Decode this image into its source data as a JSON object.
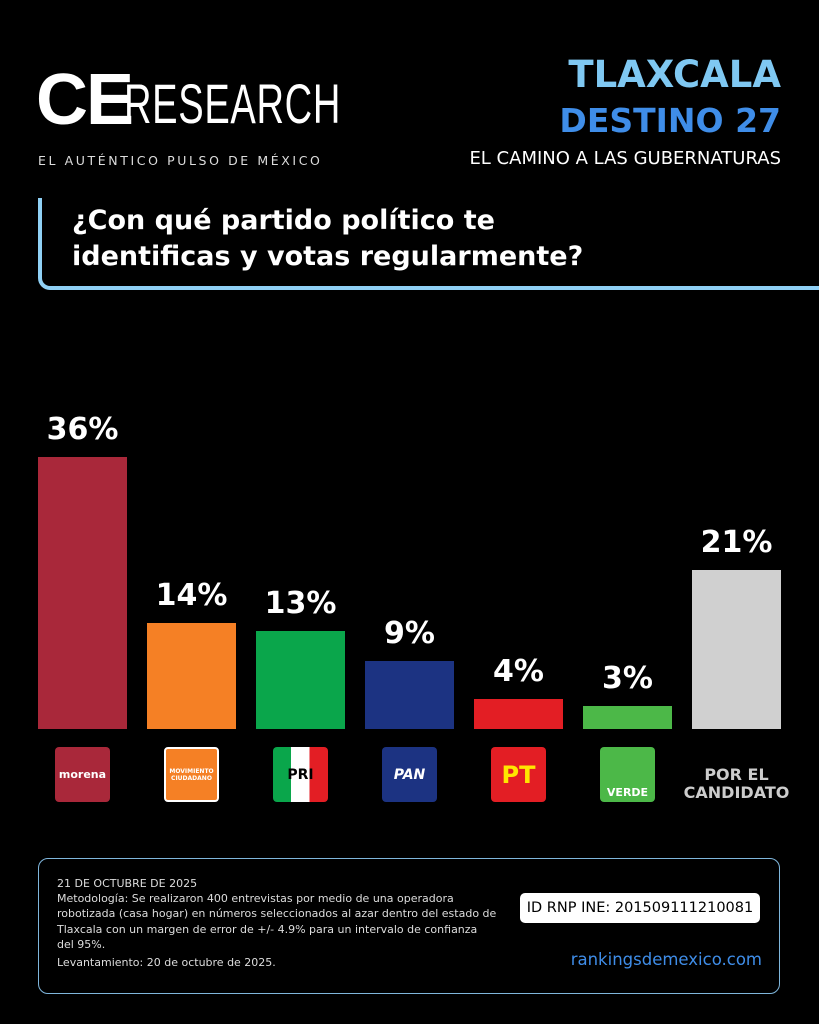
{
  "header": {
    "logo_ce": "CE",
    "logo_research": "RESEARCH",
    "tagline": "EL AUTÉNTICO PULSO DE MÉXICO",
    "state": "TLAXCALA",
    "series_title": "DESTINO 27",
    "subtitle": "EL CAMINO A LAS GUBERNATURAS"
  },
  "question": "¿Con qué partido político te identificas y votas regularmente?",
  "chart_data": {
    "type": "bar",
    "categories": [
      "morena",
      "MOVIMIENTO CIUDADANO",
      "PRI",
      "PAN",
      "PT",
      "VERDE",
      "POR EL CANDIDATO"
    ],
    "values": [
      36,
      14,
      13,
      9,
      4,
      3,
      21
    ],
    "value_labels": [
      "36%",
      "14%",
      "13%",
      "9%",
      "4%",
      "3%",
      "21%"
    ],
    "colors": [
      "#a9283a",
      "#f58025",
      "#0aa64b",
      "#1c3382",
      "#e31e24",
      "#4cb848",
      "#d0d0d0"
    ]
  },
  "footer": {
    "date": "21 DE OCTUBRE DE 2025",
    "methodology": "Metodología: Se realizaron 400 entrevistas por medio de una operadora robotizada (casa hogar) en números seleccionados al azar dentro del estado de Tlaxcala con un margen de error de +/- 4.9% para un intervalo de confianza del 95%.",
    "fieldwork": "Levantamiento: 20 de octubre de 2025.",
    "registry_id": "ID RNP INE: 201509111210081",
    "website": "rankingsdemexico.com"
  }
}
